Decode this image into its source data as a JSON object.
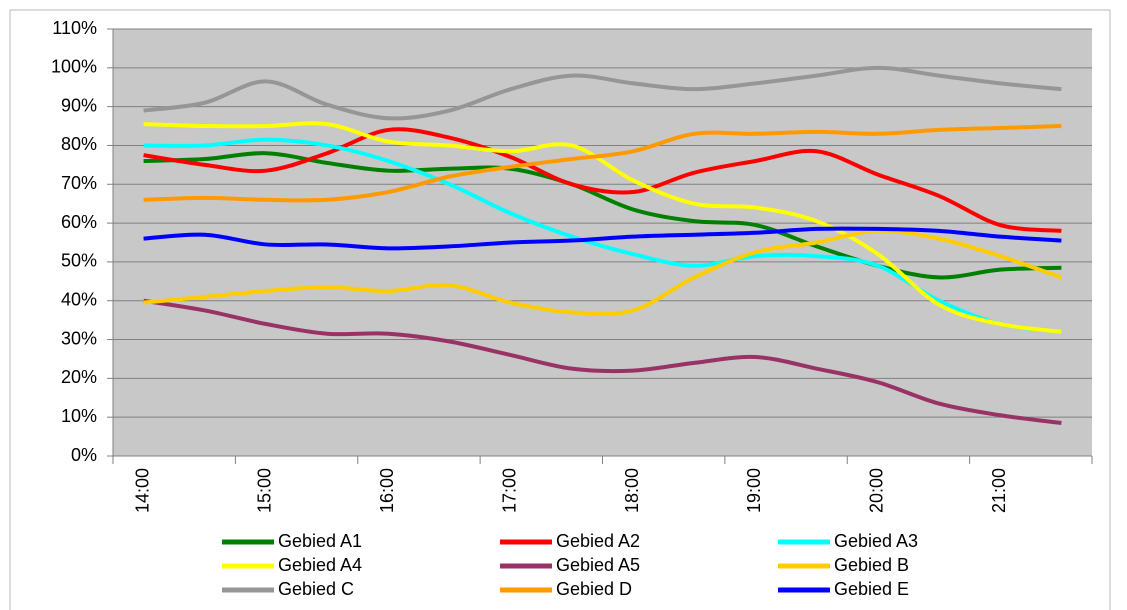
{
  "chart_data": {
    "type": "line",
    "categories": [
      "14:00",
      null,
      "15:00",
      null,
      "16:00",
      null,
      "17:00",
      null,
      "18:00",
      null,
      "19:00",
      null,
      "20:00",
      null,
      "21:00",
      null
    ],
    "series": [
      {
        "name": "Gebied A1",
        "color": "#008000",
        "values": [
          76,
          76.5,
          78,
          75.5,
          73.5,
          74,
          74,
          70,
          63.5,
          60.5,
          59.5,
          54,
          49,
          46,
          48,
          48.5
        ]
      },
      {
        "name": "Gebied A2",
        "color": "#ff0000",
        "values": [
          77.5,
          75,
          73.5,
          78,
          84,
          82,
          77,
          70,
          68,
          73,
          76,
          78.5,
          72.5,
          67,
          59.5,
          58
        ]
      },
      {
        "name": "Gebied A3",
        "color": "#00ffff",
        "values": [
          80,
          80,
          81.5,
          80,
          76,
          70,
          62.5,
          56.5,
          52,
          49,
          51.5,
          51.5,
          49,
          40,
          34,
          32
        ]
      },
      {
        "name": "Gebied A4",
        "color": "#ffff00",
        "values": [
          85.5,
          85,
          85,
          85.5,
          81,
          80,
          78.5,
          80,
          71,
          65,
          64,
          60.5,
          52,
          39,
          34,
          32
        ]
      },
      {
        "name": "Gebied A5",
        "color": "#993366",
        "values": [
          40,
          37.5,
          34,
          31.5,
          31.5,
          29.5,
          26,
          22.5,
          22,
          24,
          25.5,
          22.5,
          19,
          13.5,
          10.5,
          8.5
        ]
      },
      {
        "name": "Gebied B",
        "color": "#ffcc00",
        "values": [
          39.5,
          41,
          42.5,
          43.5,
          42.5,
          44,
          39.5,
          37,
          37.5,
          46,
          52.5,
          55,
          58,
          56,
          51.5,
          46
        ]
      },
      {
        "name": "Gebied C",
        "color": "#969696",
        "values": [
          89,
          91,
          96.5,
          90.5,
          87,
          89,
          94.5,
          98,
          96,
          94.5,
          96,
          98,
          100,
          98,
          96,
          94.5
        ]
      },
      {
        "name": "Gebied D",
        "color": "#ff9900",
        "values": [
          66,
          66.5,
          66,
          66,
          68,
          72,
          74.5,
          76.5,
          78.5,
          83,
          83,
          83.5,
          83,
          84,
          84.5,
          85
        ]
      },
      {
        "name": "Gebied E",
        "color": "#0000ff",
        "values": [
          56,
          57,
          54.5,
          54.5,
          53.5,
          54,
          55,
          55.5,
          56.5,
          57,
          57.5,
          58.5,
          58.5,
          58,
          56.5,
          55.5
        ]
      }
    ],
    "ylim": [
      0,
      110
    ],
    "yticks": [
      {
        "value": 0,
        "label": "0%"
      },
      {
        "value": 10,
        "label": "10%"
      },
      {
        "value": 20,
        "label": "20%"
      },
      {
        "value": 30,
        "label": "30%"
      },
      {
        "value": 40,
        "label": "40%"
      },
      {
        "value": 50,
        "label": "50%"
      },
      {
        "value": 60,
        "label": "60%"
      },
      {
        "value": 70,
        "label": "70%"
      },
      {
        "value": 80,
        "label": "80%"
      },
      {
        "value": 90,
        "label": "90%"
      },
      {
        "value": 100,
        "label": "100%"
      },
      {
        "value": 110,
        "label": "110%"
      }
    ],
    "grid": true
  }
}
